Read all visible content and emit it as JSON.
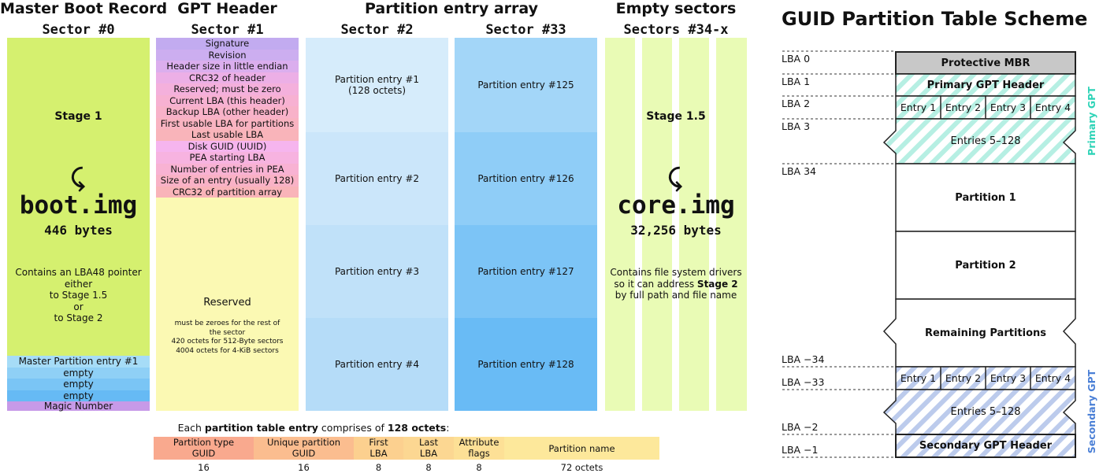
{
  "left": {
    "headers": {
      "mbr": "Master Boot Record",
      "gpt": "GPT Header",
      "pea": "Partition entry array",
      "empty": "Empty sectors"
    },
    "sectors": {
      "s0": "Sector #0",
      "s1": "Sector #1",
      "s2": "Sector #2",
      "s33": "Sector #33",
      "s34": "Sectors #34-x"
    },
    "mbr": {
      "stage": "Stage 1",
      "image": "boot.img",
      "size": "446 bytes",
      "desc": [
        "Contains an LBA48 pointer",
        "either",
        "to Stage 1.5",
        "or",
        "to Stage 2"
      ],
      "entries": [
        "Master Partition entry #1",
        "empty",
        "empty",
        "empty"
      ],
      "magic": "Magic Number"
    },
    "gpt": {
      "fields": [
        "Signature",
        "Revision",
        "Header size in little endian",
        "CRC32 of header",
        "Reserved; must be zero",
        "Current LBA (this header)",
        "Backup LBA (other header)",
        "First usable LBA for partitions",
        "Last usable LBA",
        "Disk GUID (UUID)",
        "PEA starting LBA",
        "Number of entries in PEA",
        "Size of an entry (usually 128)",
        "CRC32 of partition array"
      ],
      "reserved": "Reserved",
      "reserved_note": [
        "must be zeroes for the rest of",
        "the sector",
        "420 octets for 512-Byte sectors",
        "4004 octets for 4-KiB sectors"
      ]
    },
    "pea": {
      "col1": [
        "Partition entry #1",
        "Partition entry #2",
        "Partition entry #3",
        "Partition entry #4"
      ],
      "col1_sub": "(128 octets)",
      "col2": [
        "Partition entry #125",
        "Partition entry #126",
        "Partition entry #127",
        "Partition entry #128"
      ]
    },
    "empty": {
      "stage": "Stage 1.5",
      "image": "core.img",
      "size": "32,256 bytes",
      "desc_pre": [
        "Contains file system drivers",
        "so it can address "
      ],
      "desc_bold": "Stage 2",
      "desc_post": "by full path and file name"
    },
    "entry_layout": {
      "caption_pre": "Each ",
      "caption_bold1": "partition table entry",
      "caption_mid": " comprises of ",
      "caption_bold2": "128 octets",
      "caption_post": ":",
      "fields": [
        {
          "label": "Partition type\nGUID",
          "size": "16",
          "color": "#f9a98e"
        },
        {
          "label": "Unique partition\nGUID",
          "size": "16",
          "color": "#fbbd8f"
        },
        {
          "label": "First\nLBA",
          "size": "8",
          "color": "#fcd08f"
        },
        {
          "label": "Last\nLBA",
          "size": "8",
          "color": "#fcd792"
        },
        {
          "label": "Attribute\nflags",
          "size": "8",
          "color": "#fde096"
        },
        {
          "label": "Partition name",
          "size": "72 octets",
          "color": "#fde89b"
        }
      ]
    }
  },
  "right": {
    "title": "GUID Partition Table Scheme",
    "lba_labels": [
      "LBA 0",
      "LBA 1",
      "LBA 2",
      "LBA 3",
      "LBA 34",
      "LBA −34",
      "LBA −33",
      "LBA −2",
      "LBA −1"
    ],
    "protective_mbr": "Protective MBR",
    "primary_header": "Primary GPT Header",
    "entries": [
      "Entry 1",
      "Entry 2",
      "Entry 3",
      "Entry 4"
    ],
    "entries_rest": "Entries 5–128",
    "partition1": "Partition 1",
    "partition2": "Partition 2",
    "remaining": "Remaining Partitions",
    "secondary_header": "Secondary GPT Header",
    "primary_side": "Primary GPT",
    "secondary_side": "Secondary GPT"
  },
  "colors": {
    "mbr_green": "#d5f06f",
    "gpt_yellow": "#fbf9b3",
    "pea_light": "#d6ecfb",
    "pea_blue": "#8fcdf7",
    "empty_green": "#e9fbb5",
    "primary_teal": "#2ed3b7",
    "secondary_blue": "#4a7fd6"
  }
}
